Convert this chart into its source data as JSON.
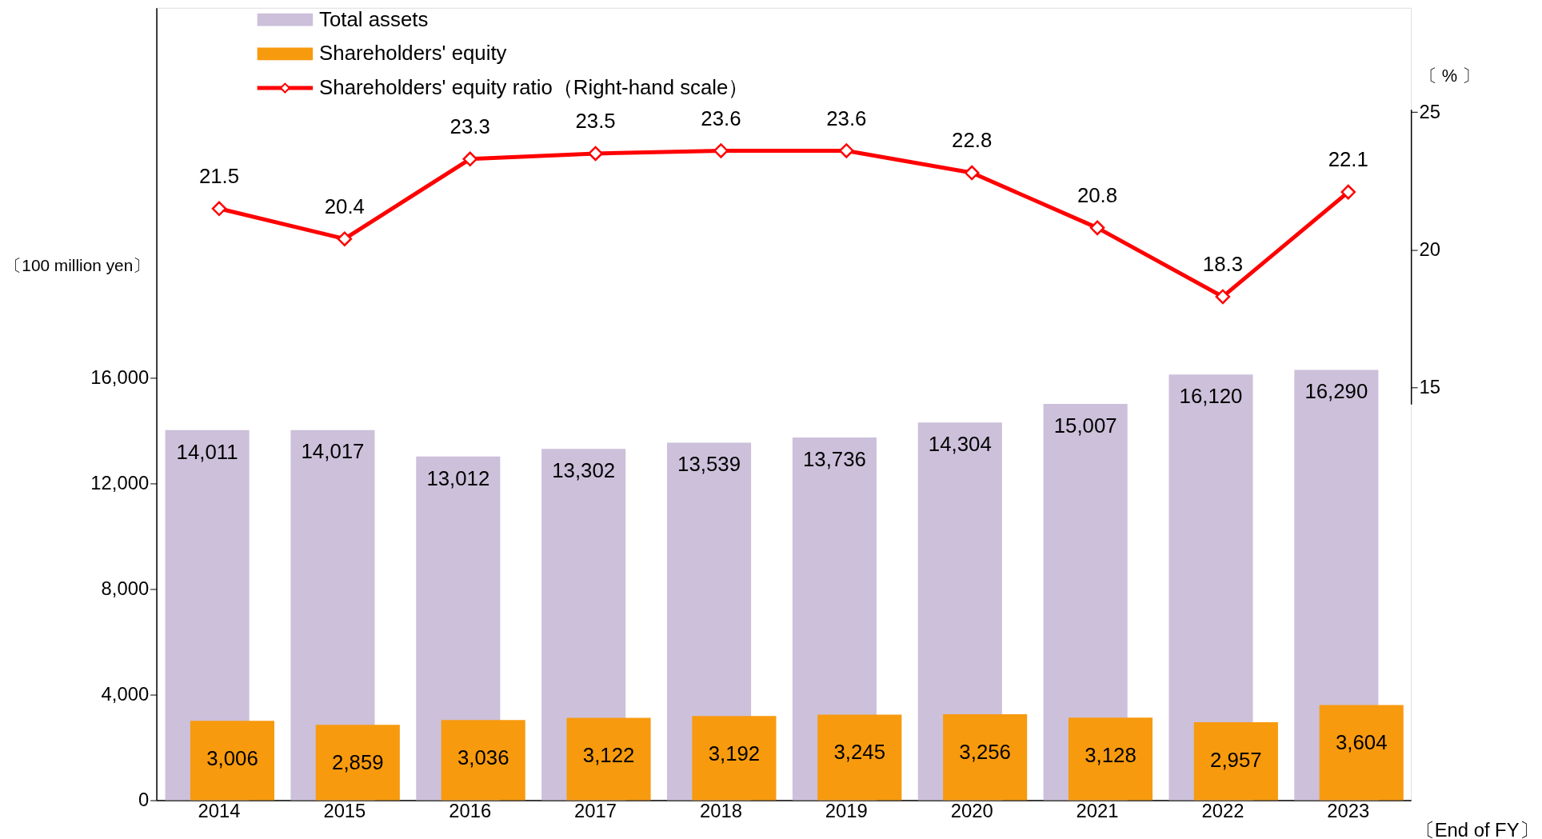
{
  "chart_data": {
    "type": "bar",
    "categories": [
      "2014",
      "2015",
      "2016",
      "2017",
      "2018",
      "2019",
      "2020",
      "2021",
      "2022",
      "2023"
    ],
    "series": [
      {
        "name": "Total assets",
        "color": "#ccc0da",
        "values": [
          14011,
          14017,
          13012,
          13302,
          13539,
          13736,
          14304,
          15007,
          16120,
          16290
        ],
        "value_labels": [
          "14,011",
          "14,017",
          "13,012",
          "13,302",
          "13,539",
          "13,736",
          "14,304",
          "15,007",
          "16,120",
          "16,290"
        ]
      },
      {
        "name": "Shareholders' equity",
        "color": "#f79a0e",
        "values": [
          3006,
          2859,
          3036,
          3122,
          3192,
          3245,
          3256,
          3128,
          2957,
          3604
        ],
        "value_labels": [
          "3,006",
          "2,859",
          "3,036",
          "3,122",
          "3,192",
          "3,245",
          "3,256",
          "3,128",
          "2,957",
          "3,604"
        ]
      },
      {
        "name": "Shareholders' equity ratio（Right-hand scale）",
        "type": "line",
        "axis": "y2",
        "color": "#ff0000",
        "values": [
          21.5,
          20.4,
          23.3,
          23.5,
          23.6,
          23.6,
          22.8,
          20.8,
          18.3,
          22.1
        ]
      }
    ],
    "ylabel": "〔100 million yen〕",
    "y2label": "〔 % 〕",
    "xlabel": "〔End of FY〕",
    "ylim": [
      0,
      30000
    ],
    "yticks": [
      0,
      {
        "value": 4000,
        "label": "4,000"
      },
      {
        "value": 8000,
        "label": "8,000"
      },
      {
        "value": 12000,
        "label": "12,000"
      },
      {
        "value": 16000,
        "label": "16,000"
      }
    ],
    "y2lim": [
      14.4,
      25.1
    ],
    "y2ticks": [
      15,
      20,
      25
    ],
    "data_labels": true,
    "legend": "top left",
    "marker": "diamond",
    "line_style": "solid",
    "grid": false
  }
}
